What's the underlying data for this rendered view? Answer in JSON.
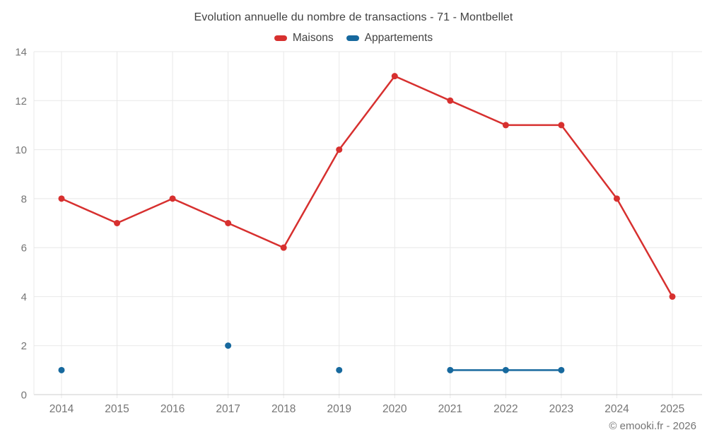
{
  "title": "Evolution annuelle du nombre de transactions - 71 - Montbellet",
  "footer": "© emooki.fr - 2026",
  "colors": {
    "maisons": "#d7302f",
    "appartements": "#17699e",
    "grid": "#e8e8e8",
    "axis_line": "#cccccc",
    "tick_label": "#757575",
    "title_text": "#424242",
    "background": "#ffffff"
  },
  "chart_data": {
    "type": "line",
    "categories": [
      "2014",
      "2015",
      "2016",
      "2017",
      "2018",
      "2019",
      "2020",
      "2021",
      "2022",
      "2023",
      "2024",
      "2025"
    ],
    "series": [
      {
        "name": "Maisons",
        "color": "#d7302f",
        "values": [
          8,
          7,
          8,
          7,
          6,
          10,
          13,
          12,
          11,
          11,
          8,
          4
        ]
      },
      {
        "name": "Appartements",
        "color": "#17699e",
        "values": [
          1,
          null,
          null,
          2,
          null,
          1,
          null,
          1,
          1,
          1,
          null,
          null
        ]
      }
    ],
    "title": "Evolution annuelle du nombre de transactions - 71 - Montbellet",
    "xlabel": "",
    "ylabel": "",
    "ylim": [
      0,
      14
    ],
    "yticks": [
      0,
      2,
      4,
      6,
      8,
      10,
      12,
      14
    ],
    "grid": true,
    "legend_position": "top"
  }
}
